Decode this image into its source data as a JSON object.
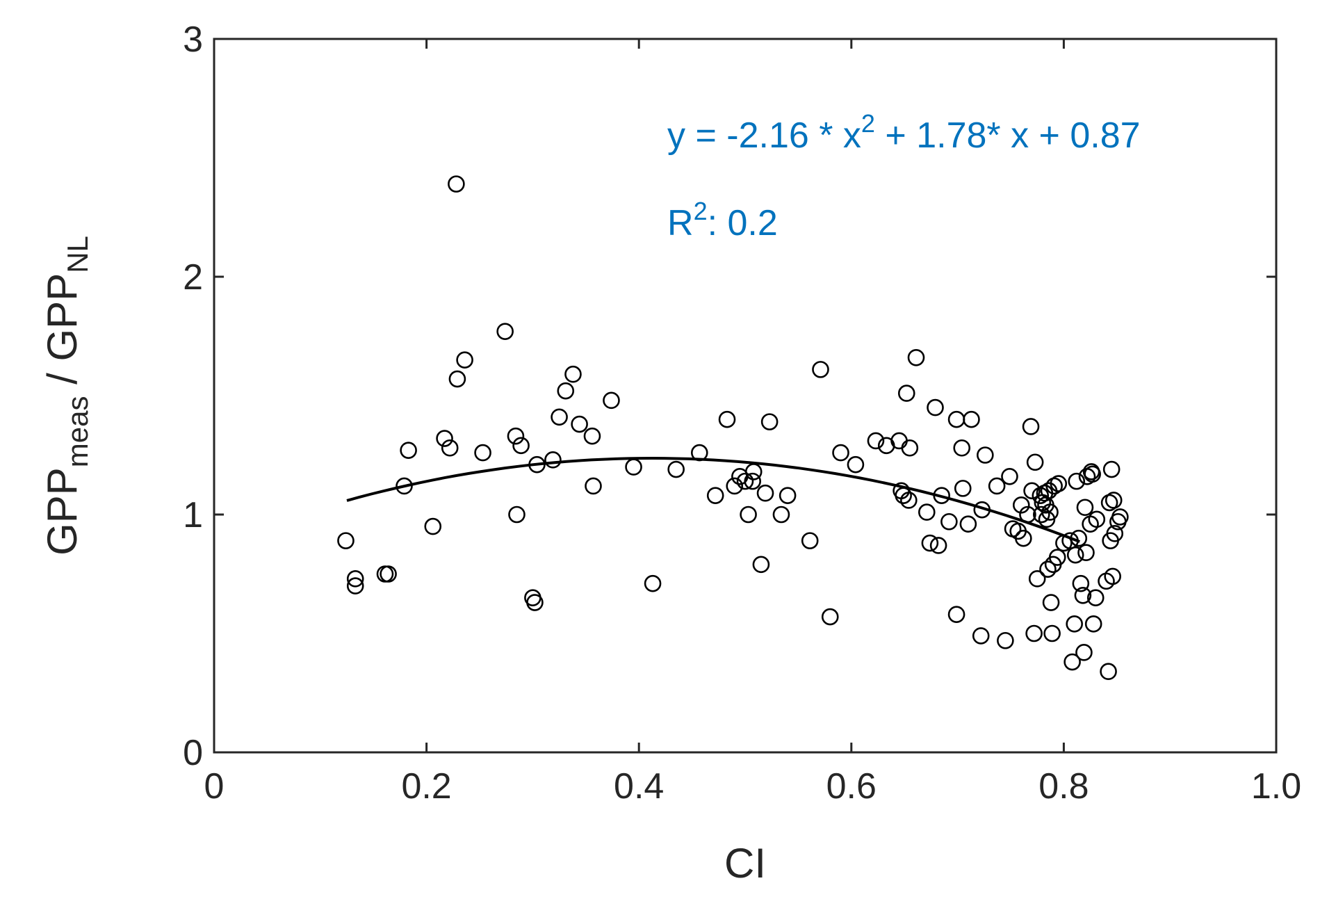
{
  "chart_data": {
    "type": "scatter",
    "xlabel": "CI",
    "ylabel": {
      "main1": "GPP",
      "sub1": "meas",
      "sep": " / ",
      "main2": "GPP",
      "sub2": "NL"
    },
    "xlim": [
      0,
      1.0
    ],
    "ylim": [
      0,
      3
    ],
    "x_ticks": [
      0,
      0.2,
      0.4,
      0.6,
      0.8,
      1.0
    ],
    "x_tick_labels": [
      "0",
      "0.2",
      "0.4",
      "0.6",
      "0.8",
      "1.0"
    ],
    "y_ticks": [
      0,
      1,
      2,
      3
    ],
    "y_tick_labels": [
      "0",
      "1",
      "2",
      "3"
    ],
    "grid": false,
    "fit": {
      "type": "quadratic",
      "a": -2.16,
      "b": 1.78,
      "c": 0.87,
      "x_range": [
        0.125,
        0.815
      ],
      "equation_parts": {
        "lead": "y = -2.16 * x",
        "exp": "2",
        "tail": " + 1.78* x + 0.87"
      },
      "r2_parts": {
        "lead": "R",
        "exp": "2",
        "tail": ": 0.2"
      },
      "color": "#0072BD"
    },
    "marker_color": "#000000",
    "points": [
      [
        0.124,
        0.89
      ],
      [
        0.133,
        0.73
      ],
      [
        0.133,
        0.7
      ],
      [
        0.161,
        0.75
      ],
      [
        0.164,
        0.75
      ],
      [
        0.179,
        1.12
      ],
      [
        0.183,
        1.27
      ],
      [
        0.206,
        0.95
      ],
      [
        0.217,
        1.32
      ],
      [
        0.222,
        1.28
      ],
      [
        0.228,
        2.39
      ],
      [
        0.229,
        1.57
      ],
      [
        0.236,
        1.65
      ],
      [
        0.253,
        1.26
      ],
      [
        0.274,
        1.77
      ],
      [
        0.284,
        1.33
      ],
      [
        0.285,
        1.0
      ],
      [
        0.289,
        1.29
      ],
      [
        0.3,
        0.65
      ],
      [
        0.302,
        0.63
      ],
      [
        0.304,
        1.21
      ],
      [
        0.319,
        1.23
      ],
      [
        0.325,
        1.41
      ],
      [
        0.331,
        1.52
      ],
      [
        0.338,
        1.59
      ],
      [
        0.344,
        1.38
      ],
      [
        0.356,
        1.33
      ],
      [
        0.357,
        1.12
      ],
      [
        0.374,
        1.48
      ],
      [
        0.395,
        1.2
      ],
      [
        0.413,
        0.71
      ],
      [
        0.435,
        1.19
      ],
      [
        0.457,
        1.26
      ],
      [
        0.472,
        1.08
      ],
      [
        0.483,
        1.4
      ],
      [
        0.49,
        1.12
      ],
      [
        0.495,
        1.16
      ],
      [
        0.5,
        1.14
      ],
      [
        0.503,
        1.0
      ],
      [
        0.507,
        1.14
      ],
      [
        0.508,
        1.18
      ],
      [
        0.515,
        0.79
      ],
      [
        0.519,
        1.09
      ],
      [
        0.523,
        1.39
      ],
      [
        0.534,
        1.0
      ],
      [
        0.54,
        1.08
      ],
      [
        0.561,
        0.89
      ],
      [
        0.571,
        1.61
      ],
      [
        0.58,
        0.57
      ],
      [
        0.59,
        1.26
      ],
      [
        0.604,
        1.21
      ],
      [
        0.623,
        1.31
      ],
      [
        0.633,
        1.29
      ],
      [
        0.645,
        1.31
      ],
      [
        0.647,
        1.1
      ],
      [
        0.649,
        1.08
      ],
      [
        0.652,
        1.51
      ],
      [
        0.655,
        1.28
      ],
      [
        0.654,
        1.06
      ],
      [
        0.661,
        1.66
      ],
      [
        0.671,
        1.01
      ],
      [
        0.674,
        0.88
      ],
      [
        0.679,
        1.45
      ],
      [
        0.682,
        0.87
      ],
      [
        0.685,
        1.08
      ],
      [
        0.692,
        0.97
      ],
      [
        0.699,
        1.4
      ],
      [
        0.699,
        0.58
      ],
      [
        0.704,
        1.28
      ],
      [
        0.705,
        1.11
      ],
      [
        0.71,
        0.96
      ],
      [
        0.713,
        1.4
      ],
      [
        0.722,
        0.49
      ],
      [
        0.723,
        1.02
      ],
      [
        0.726,
        1.25
      ],
      [
        0.737,
        1.12
      ],
      [
        0.745,
        0.47
      ],
      [
        0.749,
        1.16
      ],
      [
        0.752,
        0.94
      ],
      [
        0.757,
        0.93
      ],
      [
        0.76,
        1.04
      ],
      [
        0.762,
        0.9
      ],
      [
        0.766,
        1.0
      ],
      [
        0.769,
        1.37
      ],
      [
        0.77,
        1.1
      ],
      [
        0.772,
        0.5
      ],
      [
        0.773,
        1.22
      ],
      [
        0.775,
        0.73
      ],
      [
        0.778,
        1.08
      ],
      [
        0.779,
        1.0
      ],
      [
        0.78,
        1.05
      ],
      [
        0.782,
        1.09
      ],
      [
        0.783,
        1.04
      ],
      [
        0.784,
        0.98
      ],
      [
        0.785,
        0.77
      ],
      [
        0.786,
        1.1
      ],
      [
        0.787,
        1.01
      ],
      [
        0.788,
        0.63
      ],
      [
        0.789,
        0.5
      ],
      [
        0.79,
        0.79
      ],
      [
        0.791,
        1.12
      ],
      [
        0.794,
        0.82
      ],
      [
        0.795,
        1.13
      ],
      [
        0.8,
        0.88
      ],
      [
        0.806,
        0.89
      ],
      [
        0.808,
        0.38
      ],
      [
        0.81,
        0.54
      ],
      [
        0.811,
        0.83
      ],
      [
        0.812,
        1.14
      ],
      [
        0.814,
        0.9
      ],
      [
        0.816,
        0.71
      ],
      [
        0.818,
        0.66
      ],
      [
        0.819,
        0.42
      ],
      [
        0.82,
        1.03
      ],
      [
        0.821,
        0.84
      ],
      [
        0.822,
        1.16
      ],
      [
        0.825,
        0.96
      ],
      [
        0.826,
        1.18
      ],
      [
        0.827,
        1.17
      ],
      [
        0.828,
        0.54
      ],
      [
        0.83,
        0.65
      ],
      [
        0.831,
        0.98
      ],
      [
        0.84,
        0.72
      ],
      [
        0.842,
        0.34
      ],
      [
        0.843,
        1.05
      ],
      [
        0.844,
        0.89
      ],
      [
        0.845,
        1.19
      ],
      [
        0.846,
        0.74
      ],
      [
        0.847,
        1.06
      ],
      [
        0.848,
        0.92
      ],
      [
        0.851,
        0.97
      ],
      [
        0.853,
        0.99
      ]
    ]
  }
}
